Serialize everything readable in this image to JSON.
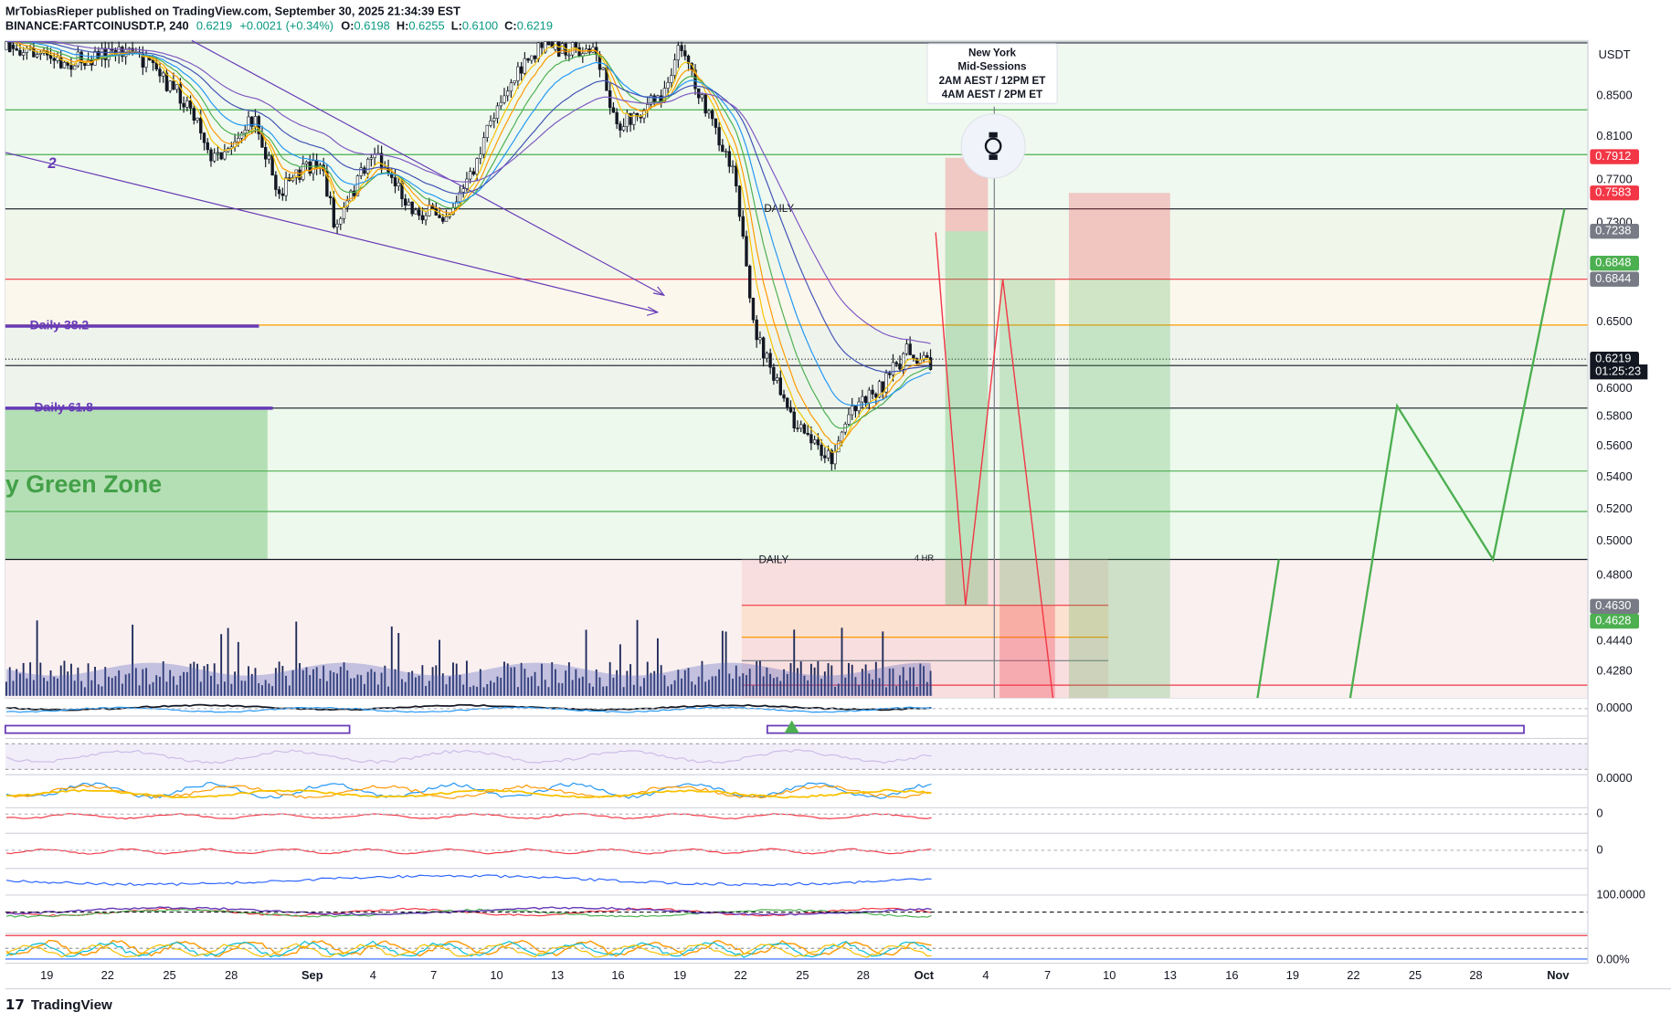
{
  "header": {
    "author_line": "MrTobiasRieper published on TradingView.com, September 30, 2025 21:34:39 EST",
    "symbol": "BINANCE:FARTCOINUSDT.P, 240",
    "last": "0.6219",
    "change": "+0.0021 (+0.34%)",
    "ohlc": [
      {
        "label": "O:",
        "value": "0.6198"
      },
      {
        "label": "H:",
        "value": "0.6255"
      },
      {
        "label": "L:",
        "value": "0.6100"
      },
      {
        "label": "C:",
        "value": "0.6219"
      }
    ]
  },
  "price_axis": {
    "currency": "USDT",
    "labels": [
      "0.8500",
      "0.8100",
      "0.7700",
      "0.7300",
      "0.6500",
      "0.6000",
      "0.5800",
      "0.5600",
      "0.5400",
      "0.5200",
      "0.5000",
      "0.4800",
      "0.4440",
      "0.4280"
    ],
    "tags": [
      {
        "text": "0.7912",
        "color": "#f23645"
      },
      {
        "text": "0.7583",
        "color": "#f23645"
      },
      {
        "text": "0.7238",
        "color": "#787b86"
      },
      {
        "text": "0.6848",
        "color": "#4caf50"
      },
      {
        "text": "0.6844",
        "color": "#787b86"
      },
      {
        "text": "0.6219",
        "color": "#131722"
      },
      {
        "text": "0.4630",
        "color": "#787b86"
      },
      {
        "text": "0.4628",
        "color": "#4caf50"
      }
    ],
    "countdown": "01:25:23"
  },
  "pane_labels": [
    "0.0000",
    "0.0000",
    "0",
    "0",
    "100.0000",
    "0.00%"
  ],
  "date_axis": [
    "19",
    "22",
    "25",
    "28",
    "Sep",
    "4",
    "7",
    "10",
    "13",
    "16",
    "19",
    "22",
    "25",
    "28",
    "Oct",
    "4",
    "7",
    "10",
    "13",
    "16",
    "19",
    "22",
    "25",
    "28",
    "Nov"
  ],
  "annotations": {
    "daily_382": "Daily 38.2",
    "daily_618": "Daily 61.8",
    "green_zone": "y Green Zone",
    "wave": "2",
    "daily_top": "DAILY",
    "daily_bottom": "DAILY",
    "four_hr": "4 HR"
  },
  "session_box": {
    "lines": [
      "New York",
      "Mid-Sessions",
      "2AM AEST / 12PM ET",
      "4AM AEST / 2PM ET"
    ]
  },
  "footer": {
    "logo": "TradingView"
  }
}
